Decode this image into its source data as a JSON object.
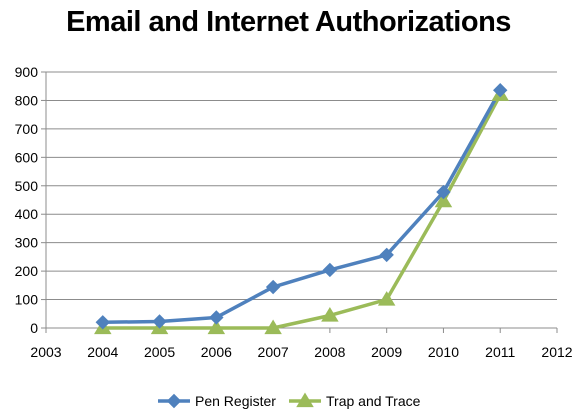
{
  "chart_data": {
    "type": "line",
    "title": "Email and Internet Authorizations",
    "xlabel": "",
    "ylabel": "",
    "xlim": [
      2003,
      2012
    ],
    "ylim": [
      0,
      900
    ],
    "x_ticks": [
      2003,
      2004,
      2005,
      2006,
      2007,
      2008,
      2009,
      2010,
      2011,
      2012
    ],
    "y_ticks": [
      0,
      100,
      200,
      300,
      400,
      500,
      600,
      700,
      800,
      900
    ],
    "grid": "horizontal",
    "legend_position": "bottom",
    "x": [
      2004,
      2005,
      2006,
      2007,
      2008,
      2009,
      2010,
      2011
    ],
    "series": [
      {
        "name": "Pen Register",
        "color": "#4F81BD",
        "marker": "diamond",
        "values": [
          20,
          23,
          37,
          144,
          204,
          257,
          478,
          836
        ]
      },
      {
        "name": "Trap and Trace",
        "color": "#9BBB59",
        "marker": "triangle",
        "values": [
          0,
          0,
          0,
          0,
          44,
          100,
          446,
          820
        ]
      }
    ]
  }
}
